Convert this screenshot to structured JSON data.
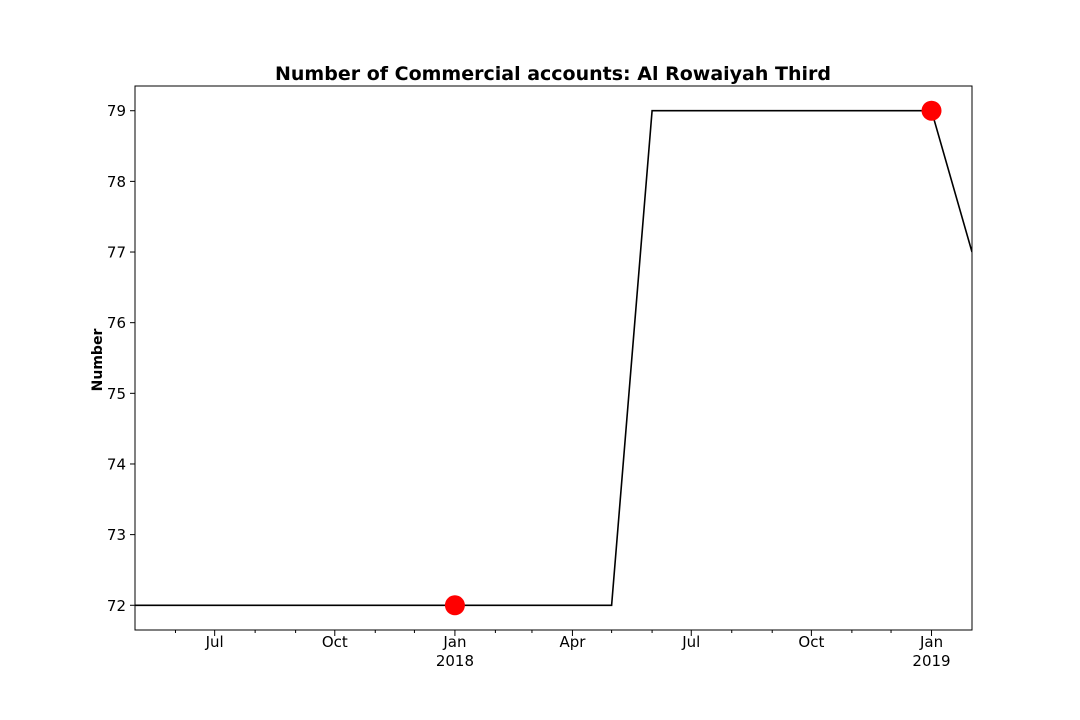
{
  "chart_data": {
    "type": "line",
    "title": "Number of Commercial accounts: Al Rowaiyah Third",
    "xlabel": "",
    "ylabel": "Number",
    "xlim": [
      "2017-05-01",
      "2019-02-01"
    ],
    "ylim": [
      71.65,
      79.35
    ],
    "yticks": [
      72,
      73,
      74,
      75,
      76,
      77,
      78,
      79
    ],
    "xticks_major": [
      {
        "date": "2017-07-01",
        "label": "Jul",
        "sublabel": ""
      },
      {
        "date": "2017-10-01",
        "label": "Oct",
        "sublabel": ""
      },
      {
        "date": "2018-01-01",
        "label": "Jan",
        "sublabel": "2018"
      },
      {
        "date": "2018-04-01",
        "label": "Apr",
        "sublabel": ""
      },
      {
        "date": "2018-07-01",
        "label": "Jul",
        "sublabel": ""
      },
      {
        "date": "2018-10-01",
        "label": "Oct",
        "sublabel": ""
      },
      {
        "date": "2019-01-01",
        "label": "Jan",
        "sublabel": "2019"
      }
    ],
    "xticks_minor": [
      "2017-06-01",
      "2017-08-01",
      "2017-09-01",
      "2017-11-01",
      "2017-12-01",
      "2018-02-01",
      "2018-03-01",
      "2018-05-01",
      "2018-06-01",
      "2018-08-01",
      "2018-09-01",
      "2018-11-01",
      "2018-12-01"
    ],
    "series": [
      {
        "color": "#000000",
        "points": [
          {
            "x": "2017-05-01",
            "y": 72
          },
          {
            "x": "2018-05-01",
            "y": 72
          },
          {
            "x": "2018-06-01",
            "y": 79
          },
          {
            "x": "2019-01-01",
            "y": 79
          },
          {
            "x": "2019-02-01",
            "y": 77
          }
        ]
      }
    ],
    "highlight_points": {
      "color": "#ff0000",
      "points": [
        {
          "x": "2018-01-01",
          "y": 72
        },
        {
          "x": "2019-01-01",
          "y": 79
        }
      ]
    },
    "grid": false,
    "legend": "none"
  }
}
